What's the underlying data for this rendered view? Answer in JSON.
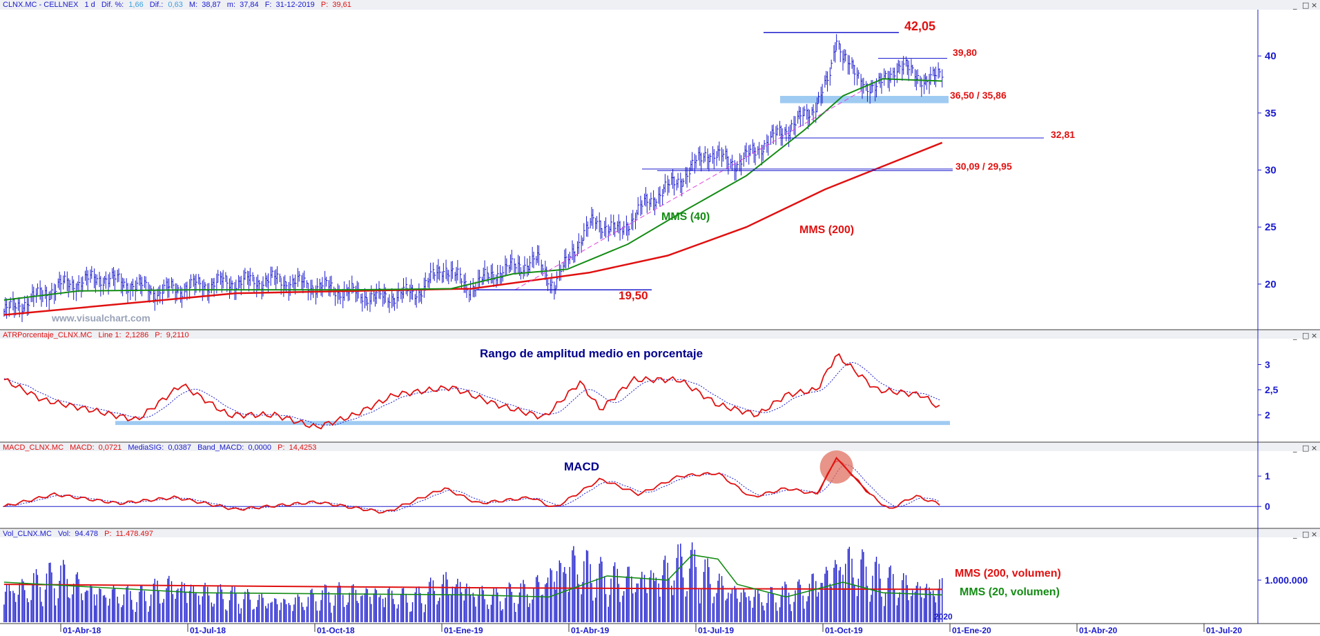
{
  "watermark": "www.visualchart.com",
  "x_labels": [
    {
      "label": "01-Abr-18"
    },
    {
      "label": "01-Jul-18"
    },
    {
      "label": "01-Oct-18"
    },
    {
      "label": "01-Ene-19"
    },
    {
      "label": "01-Abr-19"
    },
    {
      "label": "01-Jul-19"
    },
    {
      "label": "01-Oct-19"
    },
    {
      "label": "01-Ene-20"
    },
    {
      "label": "01-Abr-20"
    },
    {
      "label": "01-Jul-20"
    }
  ],
  "year_label": "2020",
  "colors": {
    "price": "#1a1acd",
    "sma40": "#138c13",
    "sma200": "#e01010",
    "ann": "#e01010",
    "axis": "#1a1acd",
    "band": "#9fcbf2",
    "macd_title": "#00008b"
  },
  "chart_data": [
    {
      "panel": "price",
      "type": "ohlc",
      "header": {
        "symbol": "CLNX.MC - CELLNEX",
        "period": "1 d",
        "dif_pct_label": "Dif. %:",
        "dif_pct": "1,66",
        "dif_label": "Dif.:",
        "dif": "0,63",
        "max_label": "M:",
        "max": "38,87",
        "min_label": "m:",
        "min": "37,84",
        "date_label": "F:",
        "date": "31-12-2019",
        "price_label": "P:",
        "price": "39,61"
      },
      "ylim": [
        16,
        44
      ],
      "yticks": [
        "20",
        "25",
        "30",
        "35",
        "40"
      ],
      "y_values": [
        20,
        25,
        30,
        35,
        40
      ],
      "x_range": [
        "2018-01-01",
        "2020-09-01"
      ],
      "series_close": [
        {
          "x": "2018-01-02",
          "y": 17.5
        },
        {
          "x": "2018-02-15",
          "y": 19.8
        },
        {
          "x": "2018-03-20",
          "y": 20.5
        },
        {
          "x": "2018-05-01",
          "y": 19.3
        },
        {
          "x": "2018-06-15",
          "y": 20.0
        },
        {
          "x": "2018-08-01",
          "y": 20.3
        },
        {
          "x": "2018-09-10",
          "y": 19.6
        },
        {
          "x": "2018-10-20",
          "y": 18.7
        },
        {
          "x": "2018-11-20",
          "y": 19.3
        },
        {
          "x": "2018-12-10",
          "y": 21.5
        },
        {
          "x": "2018-12-28",
          "y": 19.6
        },
        {
          "x": "2019-01-20",
          "y": 21.0
        },
        {
          "x": "2019-02-20",
          "y": 22.0
        },
        {
          "x": "2019-03-05",
          "y": 19.8
        },
        {
          "x": "2019-03-20",
          "y": 23.0
        },
        {
          "x": "2019-04-05",
          "y": 25.5
        },
        {
          "x": "2019-04-25",
          "y": 24.5
        },
        {
          "x": "2019-05-15",
          "y": 27.0
        },
        {
          "x": "2019-06-15",
          "y": 29.5
        },
        {
          "x": "2019-07-01",
          "y": 31.5
        },
        {
          "x": "2019-07-25",
          "y": 30.5
        },
        {
          "x": "2019-08-25",
          "y": 33.0
        },
        {
          "x": "2019-09-20",
          "y": 35.0
        },
        {
          "x": "2019-10-05",
          "y": 38.0
        },
        {
          "x": "2019-10-10",
          "y": 41.5
        },
        {
          "x": "2019-10-25",
          "y": 38.0
        },
        {
          "x": "2019-11-10",
          "y": 37.0
        },
        {
          "x": "2019-11-25",
          "y": 39.0
        },
        {
          "x": "2019-12-10",
          "y": 38.5
        },
        {
          "x": "2019-12-20",
          "y": 37.5
        },
        {
          "x": "2019-12-31",
          "y": 38.6
        }
      ],
      "sma40": [
        {
          "x": "2018-01-02",
          "y": 18.6
        },
        {
          "x": "2018-03-01",
          "y": 19.4
        },
        {
          "x": "2018-06-01",
          "y": 19.5
        },
        {
          "x": "2018-10-01",
          "y": 19.5
        },
        {
          "x": "2018-12-15",
          "y": 19.6
        },
        {
          "x": "2019-02-01",
          "y": 20.9
        },
        {
          "x": "2019-03-15",
          "y": 21.3
        },
        {
          "x": "2019-05-01",
          "y": 23.5
        },
        {
          "x": "2019-06-15",
          "y": 26.5
        },
        {
          "x": "2019-08-01",
          "y": 29.5
        },
        {
          "x": "2019-09-15",
          "y": 33.5
        },
        {
          "x": "2019-10-15",
          "y": 36.5
        },
        {
          "x": "2019-11-15",
          "y": 38.0
        },
        {
          "x": "2019-12-31",
          "y": 37.8
        }
      ],
      "sma200": [
        {
          "x": "2018-01-02",
          "y": 17.3
        },
        {
          "x": "2018-07-01",
          "y": 19.2
        },
        {
          "x": "2018-12-31",
          "y": 19.6
        },
        {
          "x": "2019-04-01",
          "y": 21.0
        },
        {
          "x": "2019-06-01",
          "y": 22.5
        },
        {
          "x": "2019-08-01",
          "y": 25.0
        },
        {
          "x": "2019-10-01",
          "y": 28.3
        },
        {
          "x": "2019-12-31",
          "y": 32.4
        }
      ],
      "annotations": {
        "high": "42,05",
        "resistance": "39,80",
        "support_band": "36,50 / 35,86",
        "level1": "32,81",
        "level2": "30,09 / 29,95",
        "low": "19,50",
        "sma40_label": "MMS (40)",
        "sma200_label": "MMS (200)"
      }
    },
    {
      "panel": "atr",
      "type": "line",
      "header": {
        "name": "ATRPorcentaje_CLNX.MC",
        "line_label": "Line 1:",
        "line": "2,1286",
        "p_label": "P:",
        "p": "9,2110"
      },
      "title": "Rango de amplitud medio en porcentaje",
      "ylim": [
        1.5,
        3.5
      ],
      "yticks": [
        "2",
        "2,5",
        "3"
      ],
      "y_values": [
        2,
        2.5,
        3
      ],
      "band_range": [
        1.8,
        1.88
      ],
      "series": [
        {
          "x": "2018-01-02",
          "y": 2.7
        },
        {
          "x": "2018-02-01",
          "y": 2.3
        },
        {
          "x": "2018-03-10",
          "y": 2.1
        },
        {
          "x": "2018-04-15",
          "y": 1.9
        },
        {
          "x": "2018-05-20",
          "y": 2.6
        },
        {
          "x": "2018-06-25",
          "y": 2.0
        },
        {
          "x": "2018-08-01",
          "y": 2.0
        },
        {
          "x": "2018-09-01",
          "y": 1.75
        },
        {
          "x": "2018-10-01",
          "y": 2.0
        },
        {
          "x": "2018-11-01",
          "y": 2.4
        },
        {
          "x": "2018-12-15",
          "y": 2.55
        },
        {
          "x": "2019-01-20",
          "y": 2.2
        },
        {
          "x": "2019-02-25",
          "y": 1.95
        },
        {
          "x": "2019-03-25",
          "y": 2.65
        },
        {
          "x": "2019-04-10",
          "y": 2.1
        },
        {
          "x": "2019-05-05",
          "y": 2.7
        },
        {
          "x": "2019-06-10",
          "y": 2.7
        },
        {
          "x": "2019-07-10",
          "y": 2.2
        },
        {
          "x": "2019-08-10",
          "y": 2.0
        },
        {
          "x": "2019-09-01",
          "y": 2.4
        },
        {
          "x": "2019-09-25",
          "y": 2.5
        },
        {
          "x": "2019-10-10",
          "y": 3.2
        },
        {
          "x": "2019-11-10",
          "y": 2.5
        },
        {
          "x": "2019-12-15",
          "y": 2.4
        },
        {
          "x": "2019-12-31",
          "y": 2.1
        }
      ]
    },
    {
      "panel": "macd",
      "type": "line",
      "header": {
        "name": "MACD_CLNX.MC",
        "macd_label": "MACD:",
        "macd": "0,0721",
        "signal_label": "MediaSIG:",
        "signal": "0,0387",
        "band_label": "Band_MACD:",
        "band": "0,0000",
        "p_label": "P:",
        "p": "14,4253"
      },
      "title": "MACD",
      "ylim": [
        -0.7,
        1.8
      ],
      "yticks": [
        "0",
        "1"
      ],
      "y_values": [
        0,
        1
      ],
      "series": [
        {
          "x": "2018-01-02",
          "y": 0.0
        },
        {
          "x": "2018-02-10",
          "y": 0.4
        },
        {
          "x": "2018-04-01",
          "y": 0.1
        },
        {
          "x": "2018-05-15",
          "y": 0.3
        },
        {
          "x": "2018-07-01",
          "y": -0.1
        },
        {
          "x": "2018-09-01",
          "y": 0.15
        },
        {
          "x": "2018-10-25",
          "y": -0.2
        },
        {
          "x": "2018-12-10",
          "y": 0.6
        },
        {
          "x": "2019-01-05",
          "y": 0.1
        },
        {
          "x": "2019-02-15",
          "y": 0.3
        },
        {
          "x": "2019-03-05",
          "y": -0.05
        },
        {
          "x": "2019-04-10",
          "y": 0.9
        },
        {
          "x": "2019-05-10",
          "y": 0.4
        },
        {
          "x": "2019-06-10",
          "y": 1.0
        },
        {
          "x": "2019-07-10",
          "y": 1.1
        },
        {
          "x": "2019-08-05",
          "y": 0.3
        },
        {
          "x": "2019-09-01",
          "y": 0.6
        },
        {
          "x": "2019-09-25",
          "y": 0.4
        },
        {
          "x": "2019-10-10",
          "y": 1.6
        },
        {
          "x": "2019-11-05",
          "y": 0.4
        },
        {
          "x": "2019-11-20",
          "y": -0.1
        },
        {
          "x": "2019-12-10",
          "y": 0.35
        },
        {
          "x": "2019-12-31",
          "y": 0.05
        }
      ]
    },
    {
      "panel": "volume",
      "type": "bar",
      "header": {
        "name": "Vol_CLNX.MC",
        "vol_label": "Vol:",
        "vol": "94.478",
        "p_label": "P:",
        "p": "11.478.497"
      },
      "ylim": [
        0,
        2000000
      ],
      "yticks": [
        "1.000.000"
      ],
      "y_values": [
        1000000
      ],
      "bars": [
        {
          "x": "2018-01-15",
          "y": 950000
        },
        {
          "x": "2018-02-15",
          "y": 1300000
        },
        {
          "x": "2018-03-15",
          "y": 900000
        },
        {
          "x": "2018-04-15",
          "y": 700000
        },
        {
          "x": "2018-05-15",
          "y": 1100000
        },
        {
          "x": "2018-06-15",
          "y": 800000
        },
        {
          "x": "2018-07-15",
          "y": 650000
        },
        {
          "x": "2018-08-15",
          "y": 600000
        },
        {
          "x": "2018-09-15",
          "y": 800000
        },
        {
          "x": "2018-10-15",
          "y": 900000
        },
        {
          "x": "2018-11-15",
          "y": 650000
        },
        {
          "x": "2018-12-15",
          "y": 1200000
        },
        {
          "x": "2019-01-15",
          "y": 700000
        },
        {
          "x": "2019-02-15",
          "y": 900000
        },
        {
          "x": "2019-03-15",
          "y": 1800000
        },
        {
          "x": "2019-04-15",
          "y": 1200000
        },
        {
          "x": "2019-05-15",
          "y": 1300000
        },
        {
          "x": "2019-06-15",
          "y": 1700000
        },
        {
          "x": "2019-07-15",
          "y": 1000000
        },
        {
          "x": "2019-08-15",
          "y": 700000
        },
        {
          "x": "2019-09-15",
          "y": 900000
        },
        {
          "x": "2019-10-15",
          "y": 1800000
        },
        {
          "x": "2019-11-15",
          "y": 1200000
        },
        {
          "x": "2019-12-15",
          "y": 1000000
        }
      ],
      "sma200": [
        {
          "x": "2018-01-02",
          "y": 900000
        },
        {
          "x": "2018-12-31",
          "y": 820000
        },
        {
          "x": "2019-06-01",
          "y": 800000
        },
        {
          "x": "2019-12-31",
          "y": 780000
        }
      ],
      "sma20": [
        {
          "x": "2018-01-02",
          "y": 950000
        },
        {
          "x": "2018-06-01",
          "y": 700000
        },
        {
          "x": "2018-12-31",
          "y": 650000
        },
        {
          "x": "2019-03-01",
          "y": 600000
        },
        {
          "x": "2019-04-15",
          "y": 1100000
        },
        {
          "x": "2019-06-01",
          "y": 1000000
        },
        {
          "x": "2019-06-20",
          "y": 1600000
        },
        {
          "x": "2019-07-10",
          "y": 1500000
        },
        {
          "x": "2019-07-25",
          "y": 900000
        },
        {
          "x": "2019-09-01",
          "y": 600000
        },
        {
          "x": "2019-10-15",
          "y": 950000
        },
        {
          "x": "2019-11-15",
          "y": 700000
        },
        {
          "x": "2019-12-31",
          "y": 650000
        }
      ],
      "sma200_label": "MMS (200, volumen)",
      "sma20_label": "MMS (20, volumen)"
    }
  ]
}
